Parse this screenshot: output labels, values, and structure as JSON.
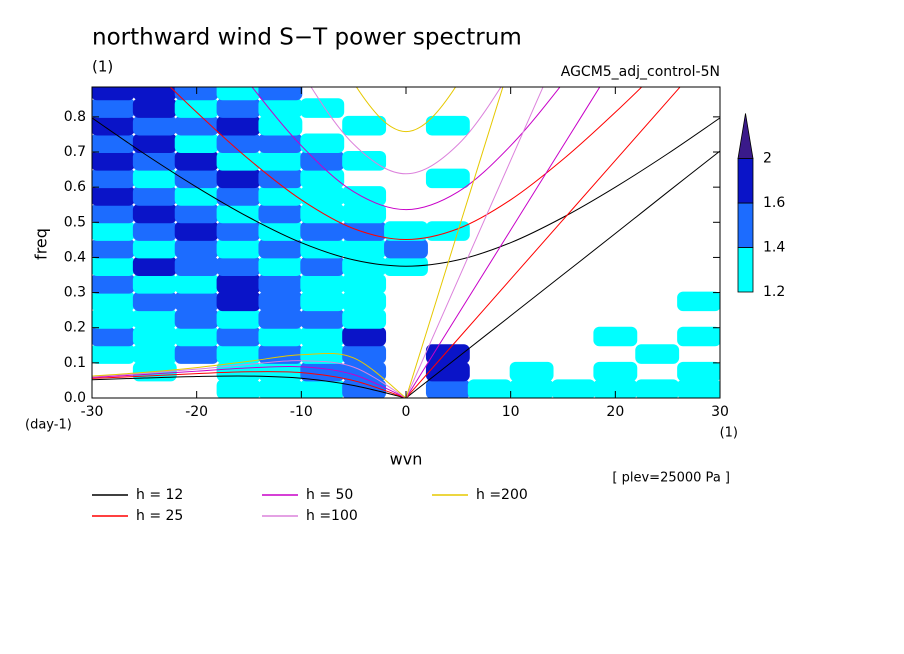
{
  "chart_data": {
    "type": "spectrum",
    "title": "northward wind S−T power spectrum",
    "subtitle": "(1)",
    "run_label": "AGCM5_adj_control-5N",
    "x_label": "wvn",
    "x_unit": "(1)",
    "y_label": "freq",
    "y_unit": "(day-1)",
    "annotation": "[ plev=25000 Pa ]",
    "xlim": [
      -30,
      30
    ],
    "ylim": [
      0,
      0.885
    ],
    "xticks": [
      -30,
      -20,
      -10,
      0,
      10,
      20,
      30
    ],
    "yticks": [
      {
        "value": 0,
        "label": "0.0"
      },
      0.1,
      0.2,
      0.3,
      0.4,
      0.5,
      0.6,
      0.7,
      0.8
    ],
    "x": [
      -30,
      -25,
      -20,
      -15,
      -10,
      -5,
      0,
      5,
      10,
      15,
      20,
      25,
      30
    ],
    "series": [
      {
        "name": "h = 12",
        "color": "#000000",
        "ig": [
          0.797,
          0.695,
          0.6,
          0.514,
          0.442,
          0.393,
          0.375,
          0.393,
          0.442,
          0.514,
          0.6,
          0.695,
          0.797
        ],
        "rossby": [
          0.052,
          0.0568,
          0.0611,
          0.0624,
          0.0562,
          0.0356,
          0,
          null,
          null,
          null,
          null,
          null,
          null
        ],
        "kelvin": [
          null,
          null,
          null,
          null,
          null,
          null,
          0,
          0.117,
          0.234,
          0.351,
          0.468,
          0.586,
          0.703
        ]
      },
      {
        "name": "h = 25",
        "color": "#ff0000",
        "ig": [
          1.11,
          0.958,
          0.813,
          0.679,
          0.564,
          0.482,
          0.451,
          0.482,
          0.564,
          0.679,
          0.813,
          0.958,
          1.11
        ],
        "rossby": [
          0.0558,
          0.0624,
          0.0694,
          0.0746,
          0.0721,
          0.0494,
          0,
          null,
          null,
          null,
          null,
          null,
          null
        ],
        "kelvin": [
          null,
          null,
          null,
          null,
          null,
          null,
          0,
          0.169,
          0.338,
          0.507,
          0.676,
          0.845,
          1.014
        ]
      },
      {
        "name": "h = 50",
        "color": "#c800c8",
        "ig": [
          null,
          null,
          1.096,
          0.896,
          0.718,
          0.587,
          0.536,
          0.587,
          0.718,
          0.896,
          1.096,
          null,
          null
        ],
        "rossby": [
          0.0587,
          0.0668,
          0.0763,
          0.0857,
          0.0888,
          0.0665,
          0,
          null,
          null,
          null,
          null,
          null,
          null
        ],
        "kelvin": [
          null,
          null,
          null,
          null,
          null,
          null,
          0,
          0.239,
          0.478,
          0.717,
          0.956,
          null,
          null
        ]
      },
      {
        "name": "h =100",
        "color": "#dc82dc",
        "ig": [
          null,
          null,
          null,
          1.198,
          0.929,
          0.722,
          0.638,
          0.722,
          0.929,
          1.198,
          null,
          null,
          null
        ],
        "rossby": [
          0.0609,
          0.0702,
          0.082,
          0.0958,
          0.1061,
          0.0879,
          0,
          null,
          null,
          null,
          null,
          null,
          null
        ],
        "kelvin": [
          null,
          null,
          null,
          null,
          null,
          null,
          0,
          0.338,
          0.676,
          1.014,
          null,
          null,
          null
        ]
      },
      {
        "name": "h =200",
        "color": "#e6c800",
        "ig": [
          null,
          null,
          null,
          null,
          1.22,
          0.897,
          0.758,
          0.897,
          1.22,
          null,
          null,
          null,
          null
        ],
        "rossby": [
          0.0625,
          0.0729,
          0.0866,
          0.1045,
          0.1231,
          0.114,
          0,
          null,
          null,
          null,
          null,
          null,
          null
        ],
        "kelvin": [
          null,
          null,
          null,
          null,
          null,
          null,
          0,
          0.478,
          0.956,
          null,
          null,
          null,
          null
        ]
      }
    ],
    "power": {
      "x": [
        -28,
        -24,
        -20,
        -16,
        -12,
        -8,
        -4,
        0,
        4,
        8,
        12,
        16,
        20,
        24,
        28
      ],
      "y": [
        0.025,
        0.075,
        0.125,
        0.175,
        0.225,
        0.275,
        0.325,
        0.375,
        0.425,
        0.475,
        0.525,
        0.575,
        0.625,
        0.675,
        0.725,
        0.775,
        0.825,
        0.875
      ],
      "values": [
        [
          null,
          null,
          null,
          1.3,
          1.3,
          1.3,
          1.5,
          null,
          1.5,
          1.3,
          1.3,
          1.3,
          1.3,
          1.3,
          1.3
        ],
        [
          null,
          1.3,
          null,
          1.3,
          1.3,
          1.5,
          1.5,
          null,
          1.8,
          null,
          1.3,
          null,
          1.3,
          null,
          1.3
        ],
        [
          1.3,
          1.3,
          1.5,
          1.3,
          1.5,
          1.3,
          1.5,
          null,
          1.8,
          null,
          null,
          null,
          null,
          1.3,
          null
        ],
        [
          1.5,
          1.3,
          1.3,
          1.5,
          1.3,
          1.3,
          1.8,
          null,
          null,
          null,
          null,
          null,
          1.3,
          null,
          1.3
        ],
        [
          1.3,
          1.3,
          1.5,
          1.3,
          1.5,
          1.5,
          1.3,
          null,
          null,
          null,
          null,
          null,
          null,
          null,
          null
        ],
        [
          1.3,
          1.5,
          1.5,
          1.8,
          1.5,
          1.3,
          1.3,
          null,
          null,
          null,
          null,
          null,
          null,
          null,
          1.3
        ],
        [
          1.5,
          1.3,
          1.3,
          1.8,
          1.5,
          1.3,
          1.3,
          null,
          null,
          null,
          null,
          null,
          null,
          null,
          null
        ],
        [
          1.3,
          1.8,
          1.5,
          1.5,
          1.3,
          1.5,
          1.3,
          1.3,
          null,
          null,
          null,
          null,
          null,
          null,
          null
        ],
        [
          1.5,
          1.3,
          1.5,
          1.3,
          1.5,
          1.3,
          1.3,
          1.5,
          null,
          null,
          null,
          null,
          null,
          null,
          null
        ],
        [
          1.3,
          1.5,
          1.8,
          1.5,
          1.3,
          1.5,
          1.5,
          1.3,
          1.3,
          null,
          null,
          null,
          null,
          null,
          null
        ],
        [
          1.5,
          1.8,
          1.5,
          1.3,
          1.5,
          1.3,
          1.3,
          null,
          null,
          null,
          null,
          null,
          null,
          null,
          null
        ],
        [
          1.8,
          1.5,
          1.3,
          1.5,
          1.3,
          1.3,
          1.3,
          null,
          null,
          null,
          null,
          null,
          null,
          null,
          null
        ],
        [
          1.5,
          1.3,
          1.5,
          1.8,
          1.5,
          1.3,
          null,
          null,
          1.3,
          null,
          null,
          null,
          null,
          null,
          null
        ],
        [
          1.8,
          1.5,
          1.8,
          1.3,
          1.3,
          1.5,
          1.3,
          null,
          null,
          null,
          null,
          null,
          null,
          null,
          null
        ],
        [
          1.5,
          1.8,
          1.3,
          1.5,
          1.5,
          1.3,
          null,
          null,
          null,
          null,
          null,
          null,
          null,
          null,
          null
        ],
        [
          1.8,
          1.5,
          1.5,
          1.8,
          1.3,
          null,
          1.3,
          null,
          1.3,
          null,
          null,
          null,
          null,
          null,
          null
        ],
        [
          1.5,
          1.8,
          1.3,
          1.5,
          1.3,
          1.3,
          null,
          null,
          null,
          null,
          null,
          null,
          null,
          null,
          null
        ],
        [
          1.8,
          1.8,
          1.5,
          1.3,
          1.5,
          null,
          null,
          null,
          null,
          null,
          null,
          null,
          null,
          null,
          null
        ]
      ]
    },
    "colorbar": {
      "levels": [
        1.2,
        1.4,
        1.6,
        2
      ],
      "colors": [
        "#00ffff",
        "#1c6cff",
        "#0a14c8",
        "#3a1a8a"
      ]
    }
  }
}
